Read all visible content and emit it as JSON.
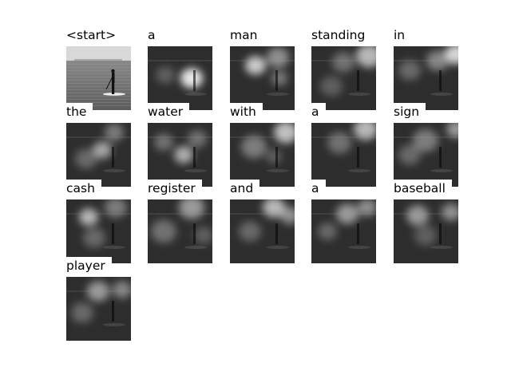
{
  "caption_tokens": [
    {
      "word": "<start>",
      "kind": "photo"
    },
    {
      "word": "a",
      "kind": "attention"
    },
    {
      "word": "man",
      "kind": "attention"
    },
    {
      "word": "standing",
      "kind": "attention"
    },
    {
      "word": "in",
      "kind": "attention"
    },
    {
      "word": "the",
      "kind": "attention"
    },
    {
      "word": "water",
      "kind": "attention"
    },
    {
      "word": "with",
      "kind": "attention"
    },
    {
      "word": "a",
      "kind": "attention"
    },
    {
      "word": "sign",
      "kind": "attention"
    },
    {
      "word": "cash",
      "kind": "attention"
    },
    {
      "word": "register",
      "kind": "attention"
    },
    {
      "word": "and",
      "kind": "attention"
    },
    {
      "word": "a",
      "kind": "attention"
    },
    {
      "word": "baseball",
      "kind": "attention"
    },
    {
      "word": "player",
      "kind": "attention"
    }
  ],
  "colors": {
    "background": "#ffffff",
    "text": "#000000",
    "dark": "#1e1e1e",
    "light": "#f2f2f2"
  }
}
